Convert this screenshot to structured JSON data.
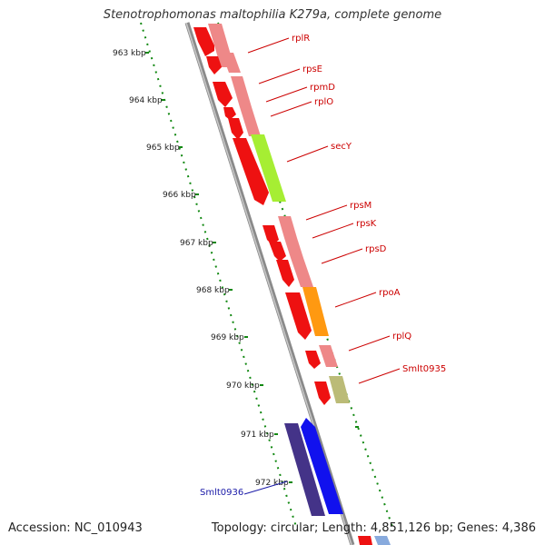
{
  "title": "Stenotrophomonas maltophilia K279a, complete genome",
  "accession": "Accession: NC_010943",
  "summary": "Topology: circular; Length: 4,851,126 bp; Genes: 4,386",
  "kbp_labels": [
    "963 kbp",
    "964 kbp",
    "965 kbp",
    "966 kbp",
    "967 kbp",
    "968 kbp",
    "969 kbp",
    "970 kbp",
    "971 kbp",
    "972 kbp"
  ],
  "genes": [
    {
      "name": "rplR",
      "strand": "+"
    },
    {
      "name": "rpsE",
      "strand": "+"
    },
    {
      "name": "rpmD",
      "strand": "+"
    },
    {
      "name": "rplO",
      "strand": "+"
    },
    {
      "name": "secY",
      "strand": "+"
    },
    {
      "name": "rpsM",
      "strand": "+"
    },
    {
      "name": "rpsK",
      "strand": "+"
    },
    {
      "name": "rpsD",
      "strand": "+"
    },
    {
      "name": "rpoA",
      "strand": "+"
    },
    {
      "name": "rplQ",
      "strand": "+"
    },
    {
      "name": "Smlt0935",
      "strand": "+"
    },
    {
      "name": "Smlt0936",
      "strand": "-"
    }
  ],
  "colors": {
    "backbone": "#8a8a8a",
    "cds": "#ee1111",
    "feature_pink": "#ee8888",
    "secY": "#a6ee33",
    "rpoA": "#ff9911",
    "Smlt0935": "#bbbb77",
    "Smlt0936_feature": "#443388",
    "Smlt0936_cds": "#1111ee",
    "tick": "#118811",
    "label_plus": "#cc0000",
    "label_minus": "#1a1aa8"
  }
}
